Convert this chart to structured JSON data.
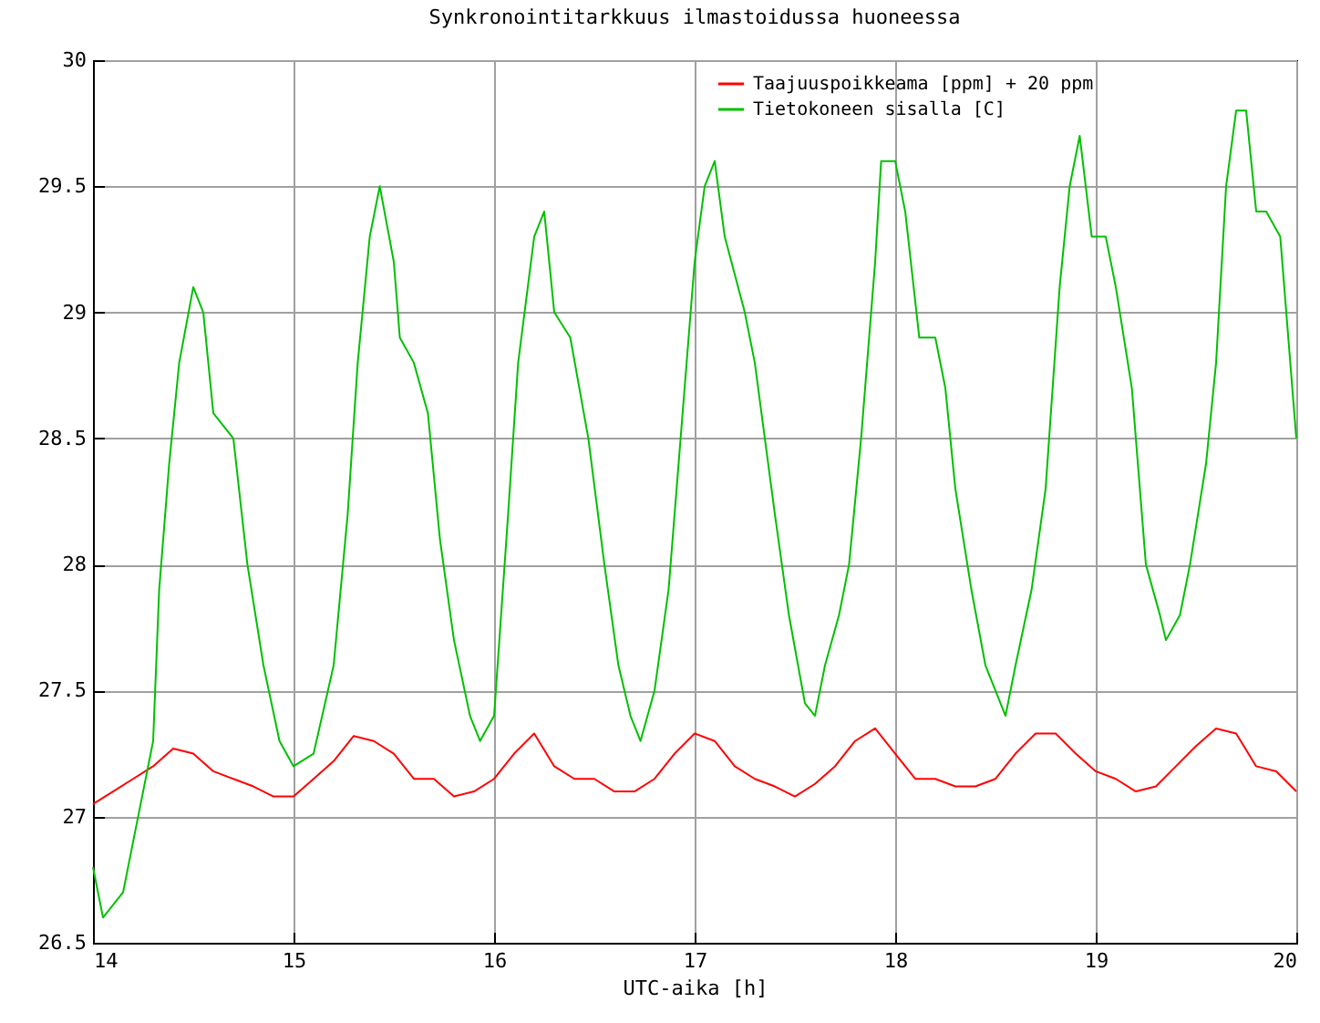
{
  "chart_data": {
    "type": "line",
    "title": "Synkronointitarkkuus ilmastoidussa huoneessa",
    "xlabel": "UTC-aika [h]",
    "xlim": [
      14,
      20
    ],
    "xticks": [
      14,
      15,
      16,
      17,
      18,
      19,
      20
    ],
    "ylim": [
      26.5,
      30
    ],
    "yticks": [
      26.5,
      27,
      27.5,
      28,
      28.5,
      29,
      29.5,
      30
    ],
    "grid": true,
    "legend": "top right",
    "series": [
      {
        "name": "Taajuuspoikkeama [ppm] + 20 ppm",
        "color": "#ff0000",
        "x": [
          14.0,
          14.1,
          14.2,
          14.3,
          14.4,
          14.5,
          14.6,
          14.7,
          14.8,
          14.9,
          15.0,
          15.1,
          15.2,
          15.3,
          15.4,
          15.5,
          15.6,
          15.7,
          15.8,
          15.9,
          16.0,
          16.1,
          16.2,
          16.3,
          16.4,
          16.5,
          16.6,
          16.7,
          16.8,
          16.9,
          17.0,
          17.1,
          17.2,
          17.3,
          17.4,
          17.5,
          17.6,
          17.7,
          17.8,
          17.9,
          18.0,
          18.1,
          18.2,
          18.3,
          18.4,
          18.5,
          18.6,
          18.7,
          18.8,
          18.9,
          19.0,
          19.1,
          19.2,
          19.3,
          19.4,
          19.5,
          19.6,
          19.7,
          19.8,
          19.9,
          20.0
        ],
        "values": [
          27.05,
          27.1,
          27.15,
          27.2,
          27.27,
          27.25,
          27.18,
          27.15,
          27.12,
          27.08,
          27.08,
          27.15,
          27.22,
          27.32,
          27.3,
          27.25,
          27.15,
          27.15,
          27.08,
          27.1,
          27.15,
          27.25,
          27.33,
          27.2,
          27.15,
          27.15,
          27.1,
          27.1,
          27.15,
          27.25,
          27.33,
          27.3,
          27.2,
          27.15,
          27.12,
          27.08,
          27.13,
          27.2,
          27.3,
          27.35,
          27.25,
          27.15,
          27.15,
          27.12,
          27.12,
          27.15,
          27.25,
          27.33,
          27.33,
          27.25,
          27.18,
          27.15,
          27.1,
          27.12,
          27.2,
          27.28,
          27.35,
          27.33,
          27.2,
          27.18,
          27.1
        ]
      },
      {
        "name": "Tietokoneen sisalla [C]",
        "color": "#00c000",
        "x": [
          14.0,
          14.05,
          14.15,
          14.2,
          14.3,
          14.33,
          14.38,
          14.43,
          14.5,
          14.55,
          14.6,
          14.7,
          14.77,
          14.85,
          14.93,
          15.0,
          15.1,
          15.2,
          15.27,
          15.32,
          15.38,
          15.43,
          15.5,
          15.53,
          15.6,
          15.67,
          15.73,
          15.8,
          15.88,
          15.93,
          16.0,
          16.07,
          16.12,
          16.2,
          16.25,
          16.3,
          16.38,
          16.47,
          16.55,
          16.62,
          16.68,
          16.73,
          16.8,
          16.87,
          16.93,
          17.0,
          17.05,
          17.1,
          17.15,
          17.25,
          17.3,
          17.4,
          17.47,
          17.55,
          17.6,
          17.65,
          17.72,
          17.77,
          17.83,
          17.9,
          17.93,
          18.0,
          18.05,
          18.12,
          18.2,
          18.25,
          18.3,
          18.38,
          18.45,
          18.5,
          18.55,
          18.6,
          18.68,
          18.75,
          18.82,
          18.87,
          18.92,
          18.98,
          19.05,
          19.1,
          19.18,
          19.25,
          19.32,
          19.35,
          19.42,
          19.47,
          19.55,
          19.6,
          19.65,
          19.7,
          19.75,
          19.8,
          19.85,
          19.92,
          19.97,
          20.0
        ],
        "values": [
          26.8,
          26.6,
          26.7,
          26.9,
          27.3,
          27.9,
          28.4,
          28.8,
          29.1,
          29.0,
          28.6,
          28.5,
          28.0,
          27.6,
          27.3,
          27.2,
          27.25,
          27.6,
          28.2,
          28.8,
          29.3,
          29.5,
          29.2,
          28.9,
          28.8,
          28.6,
          28.1,
          27.7,
          27.4,
          27.3,
          27.4,
          28.2,
          28.8,
          29.3,
          29.4,
          29.0,
          28.9,
          28.5,
          28.0,
          27.6,
          27.4,
          27.3,
          27.5,
          27.9,
          28.5,
          29.2,
          29.5,
          29.6,
          29.3,
          29.0,
          28.8,
          28.2,
          27.8,
          27.45,
          27.4,
          27.6,
          27.8,
          28.0,
          28.5,
          29.2,
          29.6,
          29.6,
          29.4,
          28.9,
          28.9,
          28.7,
          28.3,
          27.9,
          27.6,
          27.5,
          27.4,
          27.6,
          27.9,
          28.3,
          29.1,
          29.5,
          29.7,
          29.3,
          29.3,
          29.1,
          28.7,
          28.0,
          27.8,
          27.7,
          27.8,
          28.0,
          28.4,
          28.8,
          29.5,
          29.8,
          29.8,
          29.4,
          29.4,
          29.3,
          28.8,
          28.5
        ]
      }
    ]
  }
}
